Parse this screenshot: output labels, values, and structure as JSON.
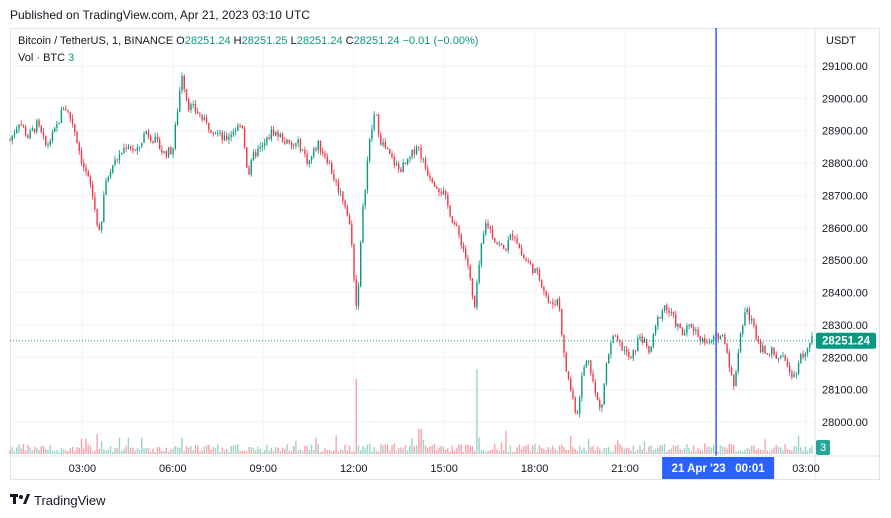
{
  "published": "Published on TradingView.com, Apr 21, 2023 03:10 UTC",
  "legend": {
    "symbol": "Bitcoin / TetherUS, 1, BINANCE",
    "o_label": "O",
    "o_value": "28251.24",
    "h_label": "H",
    "h_value": "28251.25",
    "l_label": "L",
    "l_value": "28251.24",
    "c_label": "C",
    "c_value": "28251.24",
    "change": "−0.01 (−0.00%)",
    "vol_label": "Vol · BTC",
    "vol_value": "3"
  },
  "price_axis": {
    "unit": "USDT"
  },
  "footer": {
    "brand": "TradingView",
    "logo_icon": "tradingview-logo"
  },
  "colors": {
    "up": "#089981",
    "down": "#f23645",
    "crosshair": "#2962ff",
    "grid": "#f0f3fa"
  },
  "chart_data": {
    "type": "candlestick",
    "symbol": "BTCUSDT",
    "interval_minutes": 1,
    "ylim": [
      27930,
      29180
    ],
    "y_ticks": [
      28000,
      28100,
      28200,
      28300,
      28400,
      28500,
      28600,
      28700,
      28800,
      28900,
      29000,
      29100
    ],
    "y_tick_labels": [
      "28000.00",
      "28100.00",
      "28200.00",
      "28300.00",
      "28400.00",
      "28500.00",
      "28600.00",
      "28700.00",
      "28800.00",
      "28900.00",
      "29000.00",
      "29100.00"
    ],
    "x_ticks": [
      "03:00",
      "06:00",
      "09:00",
      "12:00",
      "15:00",
      "18:00",
      "21:00",
      "03:00"
    ],
    "x_tick_hours": [
      3,
      6,
      9,
      12,
      15,
      18,
      21,
      27
    ],
    "x_range_hours": [
      0.6,
      27.3
    ],
    "crosshair_hour": 24.02,
    "crosshair_label": "21 Apr '23   00:01",
    "last_price": 28251.24,
    "last_price_label": "28251.24",
    "last_volume": 3,
    "last_volume_label": "3",
    "price_path": [
      [
        0.6,
        28870
      ],
      [
        0.9,
        28930
      ],
      [
        1.2,
        28880
      ],
      [
        1.5,
        28920
      ],
      [
        1.8,
        28850
      ],
      [
        2.1,
        28900
      ],
      [
        2.4,
        28980
      ],
      [
        2.7,
        28920
      ],
      [
        3.0,
        28800
      ],
      [
        3.3,
        28720
      ],
      [
        3.6,
        28560
      ],
      [
        3.7,
        28700
      ],
      [
        3.9,
        28780
      ],
      [
        4.2,
        28820
      ],
      [
        4.5,
        28860
      ],
      [
        4.8,
        28830
      ],
      [
        5.1,
        28900
      ],
      [
        5.4,
        28870
      ],
      [
        5.7,
        28830
      ],
      [
        6.0,
        28840
      ],
      [
        6.2,
        29000
      ],
      [
        6.3,
        29080
      ],
      [
        6.5,
        28980
      ],
      [
        6.8,
        28960
      ],
      [
        7.1,
        28920
      ],
      [
        7.4,
        28900
      ],
      [
        7.7,
        28870
      ],
      [
        8.0,
        28900
      ],
      [
        8.3,
        28920
      ],
      [
        8.5,
        28760
      ],
      [
        8.7,
        28830
      ],
      [
        9.0,
        28850
      ],
      [
        9.3,
        28900
      ],
      [
        9.6,
        28880
      ],
      [
        9.9,
        28850
      ],
      [
        10.2,
        28860
      ],
      [
        10.5,
        28800
      ],
      [
        10.8,
        28860
      ],
      [
        11.1,
        28820
      ],
      [
        11.4,
        28740
      ],
      [
        11.7,
        28680
      ],
      [
        11.9,
        28590
      ],
      [
        12.1,
        28340
      ],
      [
        12.3,
        28650
      ],
      [
        12.5,
        28850
      ],
      [
        12.7,
        28960
      ],
      [
        12.9,
        28870
      ],
      [
        13.2,
        28820
      ],
      [
        13.5,
        28780
      ],
      [
        13.8,
        28800
      ],
      [
        14.1,
        28860
      ],
      [
        14.4,
        28780
      ],
      [
        14.7,
        28740
      ],
      [
        15.0,
        28700
      ],
      [
        15.3,
        28620
      ],
      [
        15.6,
        28550
      ],
      [
        15.8,
        28480
      ],
      [
        16.0,
        28340
      ],
      [
        16.2,
        28520
      ],
      [
        16.4,
        28620
      ],
      [
        16.7,
        28560
      ],
      [
        17.0,
        28530
      ],
      [
        17.3,
        28590
      ],
      [
        17.6,
        28510
      ],
      [
        17.9,
        28480
      ],
      [
        18.2,
        28440
      ],
      [
        18.5,
        28360
      ],
      [
        18.8,
        28380
      ],
      [
        19.0,
        28180
      ],
      [
        19.2,
        28100
      ],
      [
        19.4,
        28020
      ],
      [
        19.6,
        28160
      ],
      [
        19.8,
        28200
      ],
      [
        20.0,
        28090
      ],
      [
        20.2,
        28030
      ],
      [
        20.4,
        28190
      ],
      [
        20.6,
        28260
      ],
      [
        20.9,
        28230
      ],
      [
        21.2,
        28190
      ],
      [
        21.5,
        28270
      ],
      [
        21.8,
        28210
      ],
      [
        22.1,
        28320
      ],
      [
        22.3,
        28360
      ],
      [
        22.6,
        28320
      ],
      [
        22.9,
        28270
      ],
      [
        23.2,
        28300
      ],
      [
        23.5,
        28260
      ],
      [
        23.8,
        28240
      ],
      [
        24.1,
        28270
      ],
      [
        24.3,
        28260
      ],
      [
        24.5,
        28160
      ],
      [
        24.6,
        28100
      ],
      [
        24.8,
        28260
      ],
      [
        25.0,
        28350
      ],
      [
        25.2,
        28310
      ],
      [
        25.5,
        28230
      ],
      [
        25.8,
        28220
      ],
      [
        26.1,
        28200
      ],
      [
        26.4,
        28180
      ],
      [
        26.6,
        28140
      ],
      [
        26.8,
        28200
      ],
      [
        27.0,
        28220
      ],
      [
        27.2,
        28251
      ]
    ],
    "volume_spikes": [
      [
        3.5,
        20
      ],
      [
        6.3,
        16
      ],
      [
        12.1,
        75
      ],
      [
        14.2,
        25
      ],
      [
        16.1,
        85
      ],
      [
        19.2,
        18
      ],
      [
        24.5,
        10
      ]
    ]
  }
}
